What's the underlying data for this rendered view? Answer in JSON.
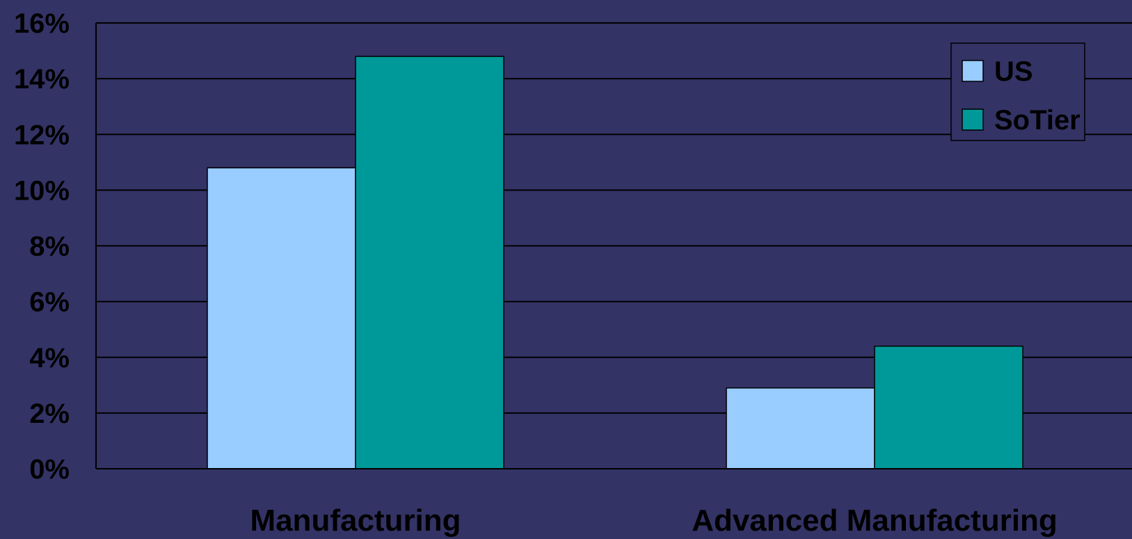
{
  "chart_data": {
    "type": "bar",
    "categories": [
      "Manufacturing",
      "Advanced Manufacturing"
    ],
    "series": [
      {
        "name": "US",
        "values": [
          10.8,
          2.9
        ],
        "color": "#99ccff"
      },
      {
        "name": "SoTier",
        "values": [
          14.8,
          4.4
        ],
        "color": "#009999"
      }
    ],
    "ylim": [
      0,
      16
    ],
    "yticks": [
      {
        "value": 0,
        "label": "0%"
      },
      {
        "value": 2,
        "label": "2%"
      },
      {
        "value": 4,
        "label": "4%"
      },
      {
        "value": 6,
        "label": "6%"
      },
      {
        "value": 8,
        "label": "8%"
      },
      {
        "value": 10,
        "label": "10%"
      },
      {
        "value": 12,
        "label": "12%"
      },
      {
        "value": 14,
        "label": "14%"
      },
      {
        "value": 16,
        "label": "16%"
      }
    ],
    "grid": true,
    "legend_position": "top-right",
    "background_color": "#333366"
  }
}
